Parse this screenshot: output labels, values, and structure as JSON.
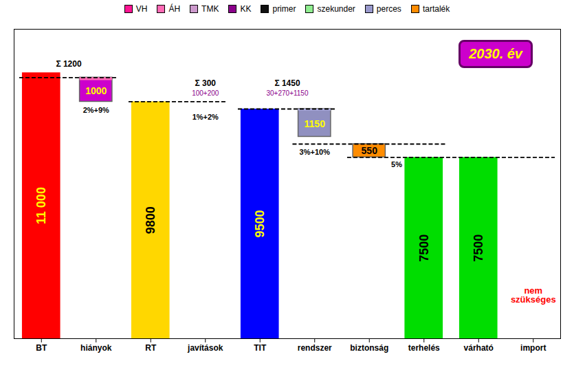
{
  "chart_data": {
    "type": "bar",
    "categories": [
      "BT",
      "hiányok",
      "RT",
      "javítások",
      "TIT",
      "rendszer",
      "biztonság",
      "terhelés",
      "várható",
      "import"
    ],
    "values": [
      11000,
      0,
      9800,
      0,
      9500,
      0,
      0,
      7500,
      7500,
      0
    ],
    "colors": [
      "#FF0000",
      null,
      "#FFD700",
      null,
      "#0000FF",
      null,
      null,
      "#00DD00",
      "#00DD00",
      null
    ],
    "data_labels": true,
    "value_labels": [
      "11 000",
      null,
      "9800",
      null,
      "9500",
      null,
      null,
      "7500",
      "7500",
      null
    ],
    "label_colors": [
      "#FFFF00",
      null,
      "#000000",
      null,
      "#FFFF00",
      null,
      null,
      "#000000",
      "#000000",
      null
    ],
    "ylim": [
      0,
      12800
    ],
    "tick_labels": "x",
    "grid": false,
    "floating_bars": [
      {
        "category": "hiányok",
        "base": 9800,
        "height": 1000,
        "label": "1000",
        "color": "#CC00CC",
        "text_color": "#FFFF00",
        "top_color": "#FF69B4",
        "top_height": 120
      },
      {
        "category": "rendszer",
        "base": 8350,
        "height": 1150,
        "label": "1150",
        "color": "#9090C0",
        "text_color": "#FFFF00",
        "top_color": "#AAAADD",
        "top_height": 80
      },
      {
        "category": "biztonság",
        "base": 7500,
        "height": 550,
        "label": "550",
        "color": "#FF8C00",
        "text_color": "#000000",
        "top_color": null,
        "top_height": 0
      }
    ],
    "reference_lines": [
      {
        "y": 10800,
        "from": "BT",
        "to": "hiányok"
      },
      {
        "y": 9800,
        "from": "RT",
        "to": "javítások"
      },
      {
        "y": 9500,
        "from": "TIT",
        "to": "rendszer"
      },
      {
        "y": 8050,
        "from": "rendszer",
        "to": "terhelés"
      },
      {
        "y": 7500,
        "from": "biztonság",
        "to": "import"
      }
    ],
    "totals": [
      {
        "text": "Σ 1200",
        "x": [
          "BT",
          "hiányok"
        ],
        "y": 11100,
        "color": "#000000"
      },
      {
        "text": "Σ 300",
        "x": "javítások",
        "y": 10300,
        "color": "#000000"
      },
      {
        "text": "Σ 1450",
        "x": [
          "TIT",
          "rendszer"
        ],
        "y": 10300,
        "color": "#000000"
      }
    ],
    "breakdowns": [
      {
        "text": "100+200",
        "x": "javítások",
        "y": 10050,
        "color": "#8B008B"
      },
      {
        "text": "30+270+1150",
        "x": [
          "TIT",
          "rendszer"
        ],
        "y": 10050,
        "color": "#8B008B"
      }
    ],
    "shares": [
      {
        "text": "2%+9%",
        "x": "hiányok",
        "y": 9560,
        "color": "#000000"
      },
      {
        "text": "1%+2%",
        "x": "javítások",
        "y": 9280,
        "color": "#000000"
      },
      {
        "text": "3%+10%",
        "x": "rendszer",
        "y": 7830,
        "color": "#000000"
      },
      {
        "text": "5%",
        "x": [
          "biztonság",
          "terhelés"
        ],
        "y": 7330,
        "color": "#000000"
      }
    ],
    "note": {
      "text": "nem\nszükséges",
      "x": "import",
      "y": 1800,
      "color": "#FF0000"
    },
    "badge": {
      "text": "2030. év",
      "color": "#FFFF00",
      "background": "#CC00CC"
    },
    "legend": "top",
    "legend_items": [
      {
        "name": "VH",
        "color": "#FF1493"
      },
      {
        "name": "ÁH",
        "color": "#FF69B4"
      },
      {
        "name": "TMK",
        "color": "#CC99CC"
      },
      {
        "name": "KK",
        "color": "#8B008B"
      },
      {
        "name": "primer",
        "color": "#111111"
      },
      {
        "name": "szekunder",
        "color": "#90EE90"
      },
      {
        "name": "perces",
        "color": "#9999CC"
      },
      {
        "name": "tartalék",
        "color": "#FF8C00"
      }
    ]
  }
}
